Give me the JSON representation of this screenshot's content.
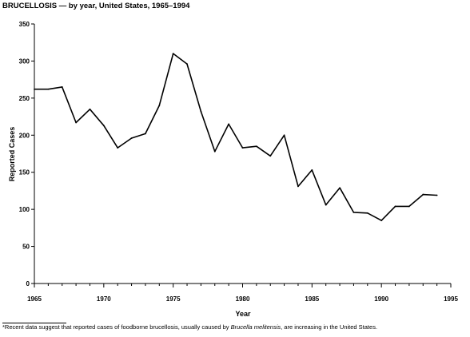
{
  "title": "BRUCELLOSIS — by year, United States, 1965–1994",
  "footnote": {
    "marker": "*",
    "before": "Recent data suggest that reported cases of foodborne brucellosis, usually caused by ",
    "species": "Brucella melitensis",
    "after": ", are increasing in the United States."
  },
  "chart_data": {
    "type": "line",
    "xlabel": "Year",
    "ylabel": "Reported Cases",
    "xlim": [
      1965,
      1995
    ],
    "ylim": [
      0,
      350
    ],
    "x_ticks": [
      1965,
      1970,
      1975,
      1980,
      1985,
      1990,
      1995
    ],
    "y_ticks": [
      0,
      50,
      100,
      150,
      200,
      250,
      300,
      350
    ],
    "grid": false,
    "series": [
      {
        "x": [
          1965,
          1966,
          1967,
          1968,
          1969,
          1970,
          1971,
          1972,
          1973,
          1974,
          1975,
          1976,
          1977,
          1978,
          1979,
          1980,
          1981,
          1982,
          1983,
          1984,
          1985,
          1986,
          1987,
          1988,
          1989,
          1990,
          1991,
          1992,
          1993,
          1994
        ],
        "values": [
          262,
          262,
          265,
          217,
          235,
          213,
          183,
          196,
          202,
          240,
          310,
          296,
          232,
          178,
          215,
          183,
          185,
          172,
          200,
          131,
          153,
          106,
          129,
          96,
          95,
          85,
          104,
          104,
          120,
          119
        ]
      }
    ],
    "line_color": "#000000"
  }
}
